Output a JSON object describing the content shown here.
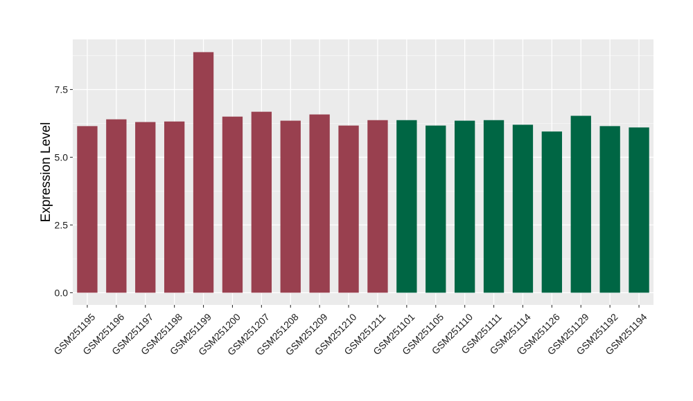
{
  "colors": {
    "panel_background": "#EBEBEB",
    "grid_major": "#FFFFFF",
    "grid_minor": "#F5F5F5",
    "group_a": "#99404F",
    "group_b": "#006644",
    "tick_text": "#1A1A1A",
    "tick_mark": "#333333"
  },
  "chart_data": {
    "type": "bar",
    "title": "",
    "xlabel": "",
    "ylabel": "Expression Level",
    "ylim": [
      -0.45,
      9.35
    ],
    "yticks": [
      0.0,
      2.5,
      5.0,
      7.5
    ],
    "ytick_labels": [
      "0.0",
      "2.5",
      "5.0",
      "7.5"
    ],
    "grid": true,
    "legend": "none",
    "categories": [
      "GSM251195",
      "GSM251196",
      "GSM251197",
      "GSM251198",
      "GSM251199",
      "GSM251200",
      "GSM251207",
      "GSM251208",
      "GSM251209",
      "GSM251210",
      "GSM251211",
      "GSM251101",
      "GSM251105",
      "GSM251110",
      "GSM251111",
      "GSM251114",
      "GSM251126",
      "GSM251129",
      "GSM251192",
      "GSM251194"
    ],
    "values": [
      6.15,
      6.4,
      6.3,
      6.32,
      8.88,
      6.5,
      6.68,
      6.35,
      6.58,
      6.17,
      6.37,
      6.37,
      6.17,
      6.35,
      6.37,
      6.2,
      5.95,
      6.53,
      6.15,
      6.1
    ],
    "bar_colors": [
      "#99404F",
      "#99404F",
      "#99404F",
      "#99404F",
      "#99404F",
      "#99404F",
      "#99404F",
      "#99404F",
      "#99404F",
      "#99404F",
      "#99404F",
      "#006644",
      "#006644",
      "#006644",
      "#006644",
      "#006644",
      "#006644",
      "#006644",
      "#006644",
      "#006644"
    ]
  }
}
